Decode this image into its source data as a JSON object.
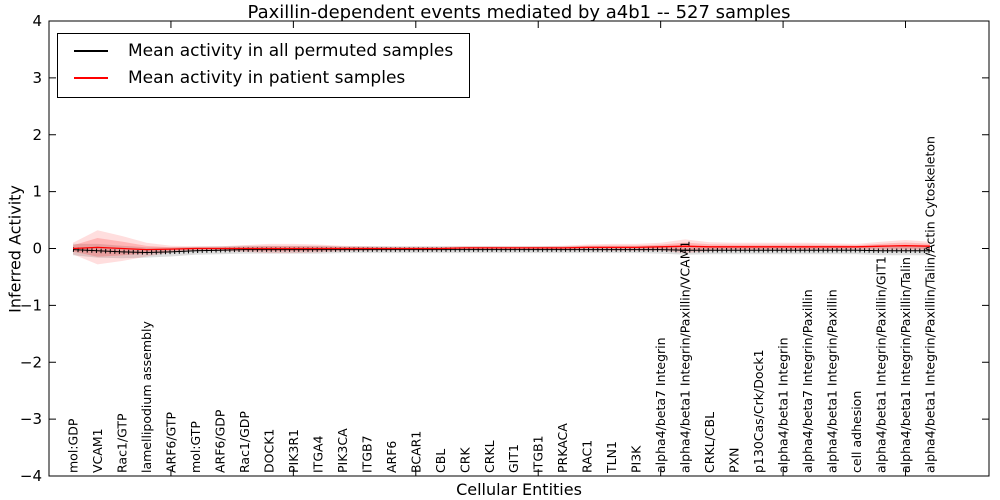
{
  "chart_data": {
    "type": "line",
    "title": "Paxillin-dependent events mediated by a4b1 -- 527 samples",
    "xlabel": "Cellular Entities",
    "ylabel": "Inferred Activity",
    "ylim": [
      -4,
      4
    ],
    "grid": false,
    "legend_position": "upper left",
    "y_ticks": [
      "4",
      "3",
      "2",
      "1",
      "0",
      "−1",
      "−2",
      "−3",
      "−4"
    ],
    "x_major_tick_indices": [
      4,
      9,
      14,
      19,
      24,
      29,
      34
    ],
    "categories": [
      "mol:GDP",
      "VCAM1",
      "Rac1/GTP",
      "lamellipodium assembly",
      "ARF6/GTP",
      "mol:GTP",
      "ARF6/GDP",
      "Rac1/GDP",
      "DOCK1",
      "PIK3R1",
      "ITGA4",
      "PIK3CA",
      "ITGB7",
      "ARF6",
      "BCAR1",
      "CBL",
      "CRK",
      "CRKL",
      "GIT1",
      "ITGB1",
      "PRKACA",
      "RAC1",
      "TLN1",
      "PI3K",
      "alpha4/beta7 Integrin",
      "alpha4/beta1 Integrin/Paxillin/VCAM1",
      "CRKL/CBL",
      "PXN",
      "p130Cas/Crk/Dock1",
      "alpha4/beta1 Integrin",
      "alpha4/beta7 Integrin/Paxillin",
      "alpha4/beta1 Integrin/Paxillin",
      "cell adhesion",
      "alpha4/beta1 Integrin/Paxillin/GIT1",
      "alpha4/beta1 Integrin/Paxillin/Talin",
      "alpha4/beta1 Integrin/Paxillin/Talin/Actin Cytoskeleton"
    ],
    "series": [
      {
        "name": "Mean activity in all permuted samples",
        "color": "#000000",
        "band_color": "#000000",
        "band_alpha": 0.13,
        "values": [
          -0.02,
          -0.04,
          -0.06,
          -0.07,
          -0.06,
          -0.04,
          -0.03,
          -0.02,
          -0.02,
          -0.02,
          -0.02,
          -0.02,
          -0.02,
          -0.02,
          -0.02,
          -0.02,
          -0.02,
          -0.02,
          -0.02,
          -0.02,
          -0.02,
          -0.02,
          -0.02,
          -0.02,
          -0.02,
          -0.03,
          -0.03,
          -0.03,
          -0.03,
          -0.03,
          -0.03,
          -0.03,
          -0.03,
          -0.04,
          -0.04,
          -0.04
        ],
        "band": [
          0.1,
          0.12,
          0.11,
          0.09,
          0.08,
          0.07,
          0.07,
          0.07,
          0.07,
          0.07,
          0.07,
          0.06,
          0.06,
          0.06,
          0.06,
          0.06,
          0.06,
          0.06,
          0.06,
          0.06,
          0.06,
          0.06,
          0.06,
          0.06,
          0.07,
          0.08,
          0.07,
          0.07,
          0.07,
          0.07,
          0.07,
          0.07,
          0.07,
          0.08,
          0.08,
          0.08
        ]
      },
      {
        "name": "Mean activity in patient samples",
        "color": "#ff0000",
        "band_color": "#ff0000",
        "band_alpha": 0.13,
        "values": [
          0.0,
          0.02,
          0.0,
          -0.02,
          -0.01,
          0.0,
          0.0,
          0.0,
          0.0,
          0.0,
          0.0,
          0.0,
          0.0,
          0.0,
          0.0,
          0.0,
          0.01,
          0.01,
          0.01,
          0.01,
          0.01,
          0.02,
          0.02,
          0.02,
          0.03,
          0.04,
          0.03,
          0.03,
          0.03,
          0.03,
          0.03,
          0.03,
          0.03,
          0.04,
          0.05,
          0.04
        ],
        "band": [
          0.1,
          0.3,
          0.22,
          0.12,
          0.06,
          0.04,
          0.04,
          0.06,
          0.08,
          0.08,
          0.07,
          0.05,
          0.04,
          0.03,
          0.03,
          0.03,
          0.03,
          0.03,
          0.03,
          0.03,
          0.04,
          0.05,
          0.06,
          0.06,
          0.07,
          0.12,
          0.08,
          0.07,
          0.07,
          0.07,
          0.07,
          0.06,
          0.05,
          0.08,
          0.1,
          0.08
        ]
      }
    ]
  }
}
